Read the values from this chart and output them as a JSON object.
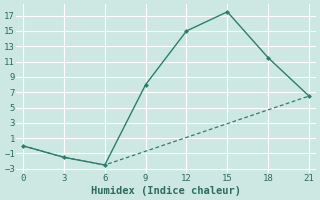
{
  "line1_x": [
    0,
    3,
    6,
    9,
    12,
    15,
    18,
    21
  ],
  "line1_y": [
    0,
    -1.5,
    -2.5,
    8,
    15,
    17.5,
    11.5,
    6.5
  ],
  "line2_x": [
    0,
    3,
    6,
    21
  ],
  "line2_y": [
    0,
    -1.5,
    -2.5,
    6.5
  ],
  "line_color": "#2d7d6e",
  "bg_color": "#cde8e2",
  "grid_color": "#ffffff",
  "xlabel": "Humidex (Indice chaleur)",
  "xlim": [
    -0.5,
    21.5
  ],
  "ylim": [
    -3.5,
    18.5
  ],
  "xticks": [
    0,
    3,
    6,
    9,
    12,
    15,
    18,
    21
  ],
  "yticks": [
    -3,
    -1,
    1,
    3,
    5,
    7,
    9,
    11,
    13,
    15,
    17
  ],
  "font_color": "#2d6b5e",
  "tick_fontsize": 6.5,
  "label_fontsize": 7.5
}
